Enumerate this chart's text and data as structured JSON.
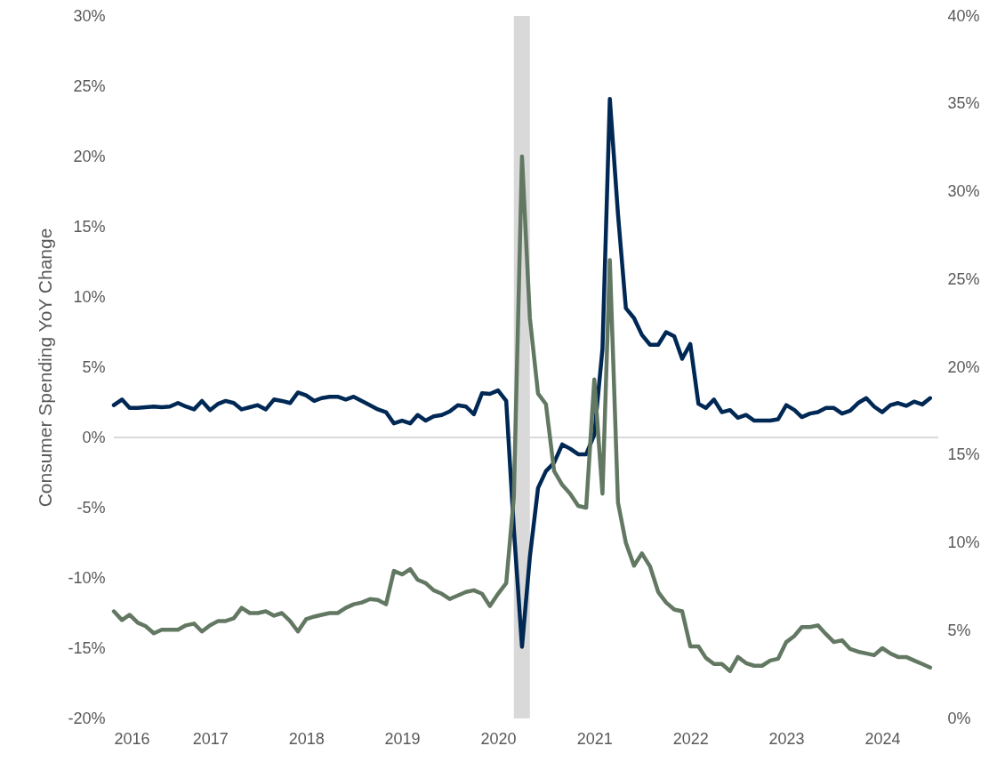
{
  "chart_data": {
    "type": "line",
    "ylabel": "Consumer Spending YoY Change",
    "x": [
      "2016-01",
      "2016-02",
      "2016-03",
      "2016-04",
      "2016-05",
      "2016-06",
      "2016-07",
      "2016-08",
      "2016-09",
      "2016-10",
      "2016-11",
      "2016-12",
      "2017-01",
      "2017-02",
      "2017-03",
      "2017-04",
      "2017-05",
      "2017-06",
      "2017-07",
      "2017-08",
      "2017-09",
      "2017-10",
      "2017-11",
      "2017-12",
      "2018-01",
      "2018-02",
      "2018-03",
      "2018-04",
      "2018-05",
      "2018-06",
      "2018-07",
      "2018-08",
      "2018-09",
      "2018-10",
      "2018-11",
      "2018-12",
      "2019-01",
      "2019-02",
      "2019-03",
      "2019-04",
      "2019-05",
      "2019-06",
      "2019-07",
      "2019-08",
      "2019-09",
      "2019-10",
      "2019-11",
      "2019-12",
      "2020-01",
      "2020-02",
      "2020-03",
      "2020-04",
      "2020-05",
      "2020-06",
      "2020-07",
      "2020-08",
      "2020-09",
      "2020-10",
      "2020-11",
      "2020-12",
      "2021-01",
      "2021-02",
      "2021-03",
      "2021-04",
      "2021-05",
      "2021-06",
      "2021-07",
      "2021-08",
      "2021-09",
      "2021-10",
      "2021-11",
      "2021-12",
      "2022-01",
      "2022-02",
      "2022-03",
      "2022-04",
      "2022-05",
      "2022-06",
      "2022-07",
      "2022-08",
      "2022-09",
      "2022-10",
      "2022-11",
      "2022-12",
      "2023-01",
      "2023-02",
      "2023-03",
      "2023-04",
      "2023-05",
      "2023-06",
      "2023-07",
      "2023-08",
      "2023-09",
      "2023-10",
      "2023-11",
      "2023-12",
      "2024-01",
      "2024-02",
      "2024-03",
      "2024-04",
      "2024-05",
      "2024-06",
      "2024-07"
    ],
    "series": [
      {
        "color": "#002855",
        "values": [
          2.3,
          2.7,
          2.1,
          2.1,
          2.15,
          2.2,
          2.15,
          2.2,
          2.45,
          2.2,
          2.0,
          2.6,
          1.95,
          2.4,
          2.6,
          2.45,
          2.0,
          2.15,
          2.3,
          2.0,
          2.7,
          2.6,
          2.45,
          3.2,
          3.0,
          2.6,
          2.8,
          2.9,
          2.9,
          2.7,
          2.9,
          2.6,
          2.3,
          2.0,
          1.8,
          1.0,
          1.2,
          1.0,
          1.6,
          1.2,
          1.5,
          1.6,
          1.85,
          2.3,
          2.2,
          1.65,
          3.15,
          3.1,
          3.35,
          2.6,
          -6.5,
          -14.9,
          -8.5,
          -3.6,
          -2.4,
          -1.8,
          -0.5,
          -0.8,
          -1.2,
          -1.2,
          0.2,
          6.3,
          24.1,
          15.9,
          9.2,
          8.5,
          7.3,
          6.6,
          6.6,
          7.5,
          7.2,
          5.6,
          6.65,
          2.4,
          2.1,
          2.7,
          1.8,
          1.95,
          1.4,
          1.6,
          1.2,
          1.2,
          1.2,
          1.3,
          2.3,
          1.95,
          1.45,
          1.7,
          1.8,
          2.1,
          2.1,
          1.7,
          1.9,
          2.45,
          2.8,
          2.2,
          1.8,
          2.3,
          2.45,
          2.25,
          2.55,
          2.35,
          2.8
        ]
      },
      {
        "color": "#627862",
        "axis": "y2",
        "values": [
          6.1,
          5.6,
          5.9,
          5.45,
          5.25,
          4.85,
          5.05,
          5.05,
          5.05,
          5.3,
          5.4,
          4.95,
          5.3,
          5.55,
          5.55,
          5.7,
          6.3,
          6.0,
          6.0,
          6.1,
          5.85,
          6.0,
          5.55,
          4.95,
          5.65,
          5.8,
          5.9,
          6.0,
          6.0,
          6.3,
          6.5,
          6.6,
          6.8,
          6.75,
          6.5,
          8.4,
          8.2,
          8.5,
          7.9,
          7.7,
          7.3,
          7.1,
          6.8,
          7.0,
          7.2,
          7.3,
          7.1,
          6.4,
          7.1,
          7.7,
          12.6,
          32.0,
          22.8,
          18.5,
          17.9,
          14.1,
          13.3,
          12.8,
          12.1,
          12.0,
          19.3,
          12.8,
          26.1,
          12.3,
          10.0,
          8.7,
          9.4,
          8.65,
          7.2,
          6.6,
          6.2,
          6.1,
          4.1,
          4.1,
          3.45,
          3.1,
          3.1,
          2.7,
          3.5,
          3.15,
          3.0,
          3.0,
          3.3,
          3.4,
          4.35,
          4.7,
          5.2,
          5.2,
          5.3,
          4.8,
          4.35,
          4.45,
          3.95,
          3.8,
          3.7,
          3.6,
          4.0,
          3.7,
          3.5,
          3.5,
          3.3,
          3.1,
          2.9
        ]
      }
    ],
    "xlim": [
      "2016-01",
      "2024-08"
    ],
    "xticks": [
      "2016",
      "2017",
      "2018",
      "2019",
      "2020",
      "2021",
      "2022",
      "2023",
      "2024"
    ],
    "ylim": [
      -20,
      30
    ],
    "yticks": [
      {
        "value": -20,
        "label": "-20%"
      },
      {
        "value": -15,
        "label": "-15%"
      },
      {
        "value": -10,
        "label": "-10%"
      },
      {
        "value": -5,
        "label": "-5%"
      },
      {
        "value": 0,
        "label": "0%"
      },
      {
        "value": 5,
        "label": "5%"
      },
      {
        "value": 10,
        "label": "10%"
      },
      {
        "value": 15,
        "label": "15%"
      },
      {
        "value": 20,
        "label": "20%"
      },
      {
        "value": 25,
        "label": "25%"
      },
      {
        "value": 30,
        "label": "30%"
      }
    ],
    "y2lim": [
      0,
      40
    ],
    "y2ticks": [
      {
        "value": 0,
        "label": "0%"
      },
      {
        "value": 5,
        "label": "5%"
      },
      {
        "value": 10,
        "label": "10%"
      },
      {
        "value": 15,
        "label": "15%"
      },
      {
        "value": 20,
        "label": "20%"
      },
      {
        "value": 25,
        "label": "25%"
      },
      {
        "value": 30,
        "label": "30%"
      },
      {
        "value": 35,
        "label": "35%"
      },
      {
        "value": 40,
        "label": "40%"
      }
    ],
    "ref_lines": [
      {
        "axis": "y",
        "value": 0,
        "color": "#d9d9d9"
      }
    ],
    "bands": [
      {
        "axis": "x",
        "from": "2020-03",
        "to": "2020-05",
        "color": "#d9d9d9"
      }
    ],
    "grid": false
  }
}
